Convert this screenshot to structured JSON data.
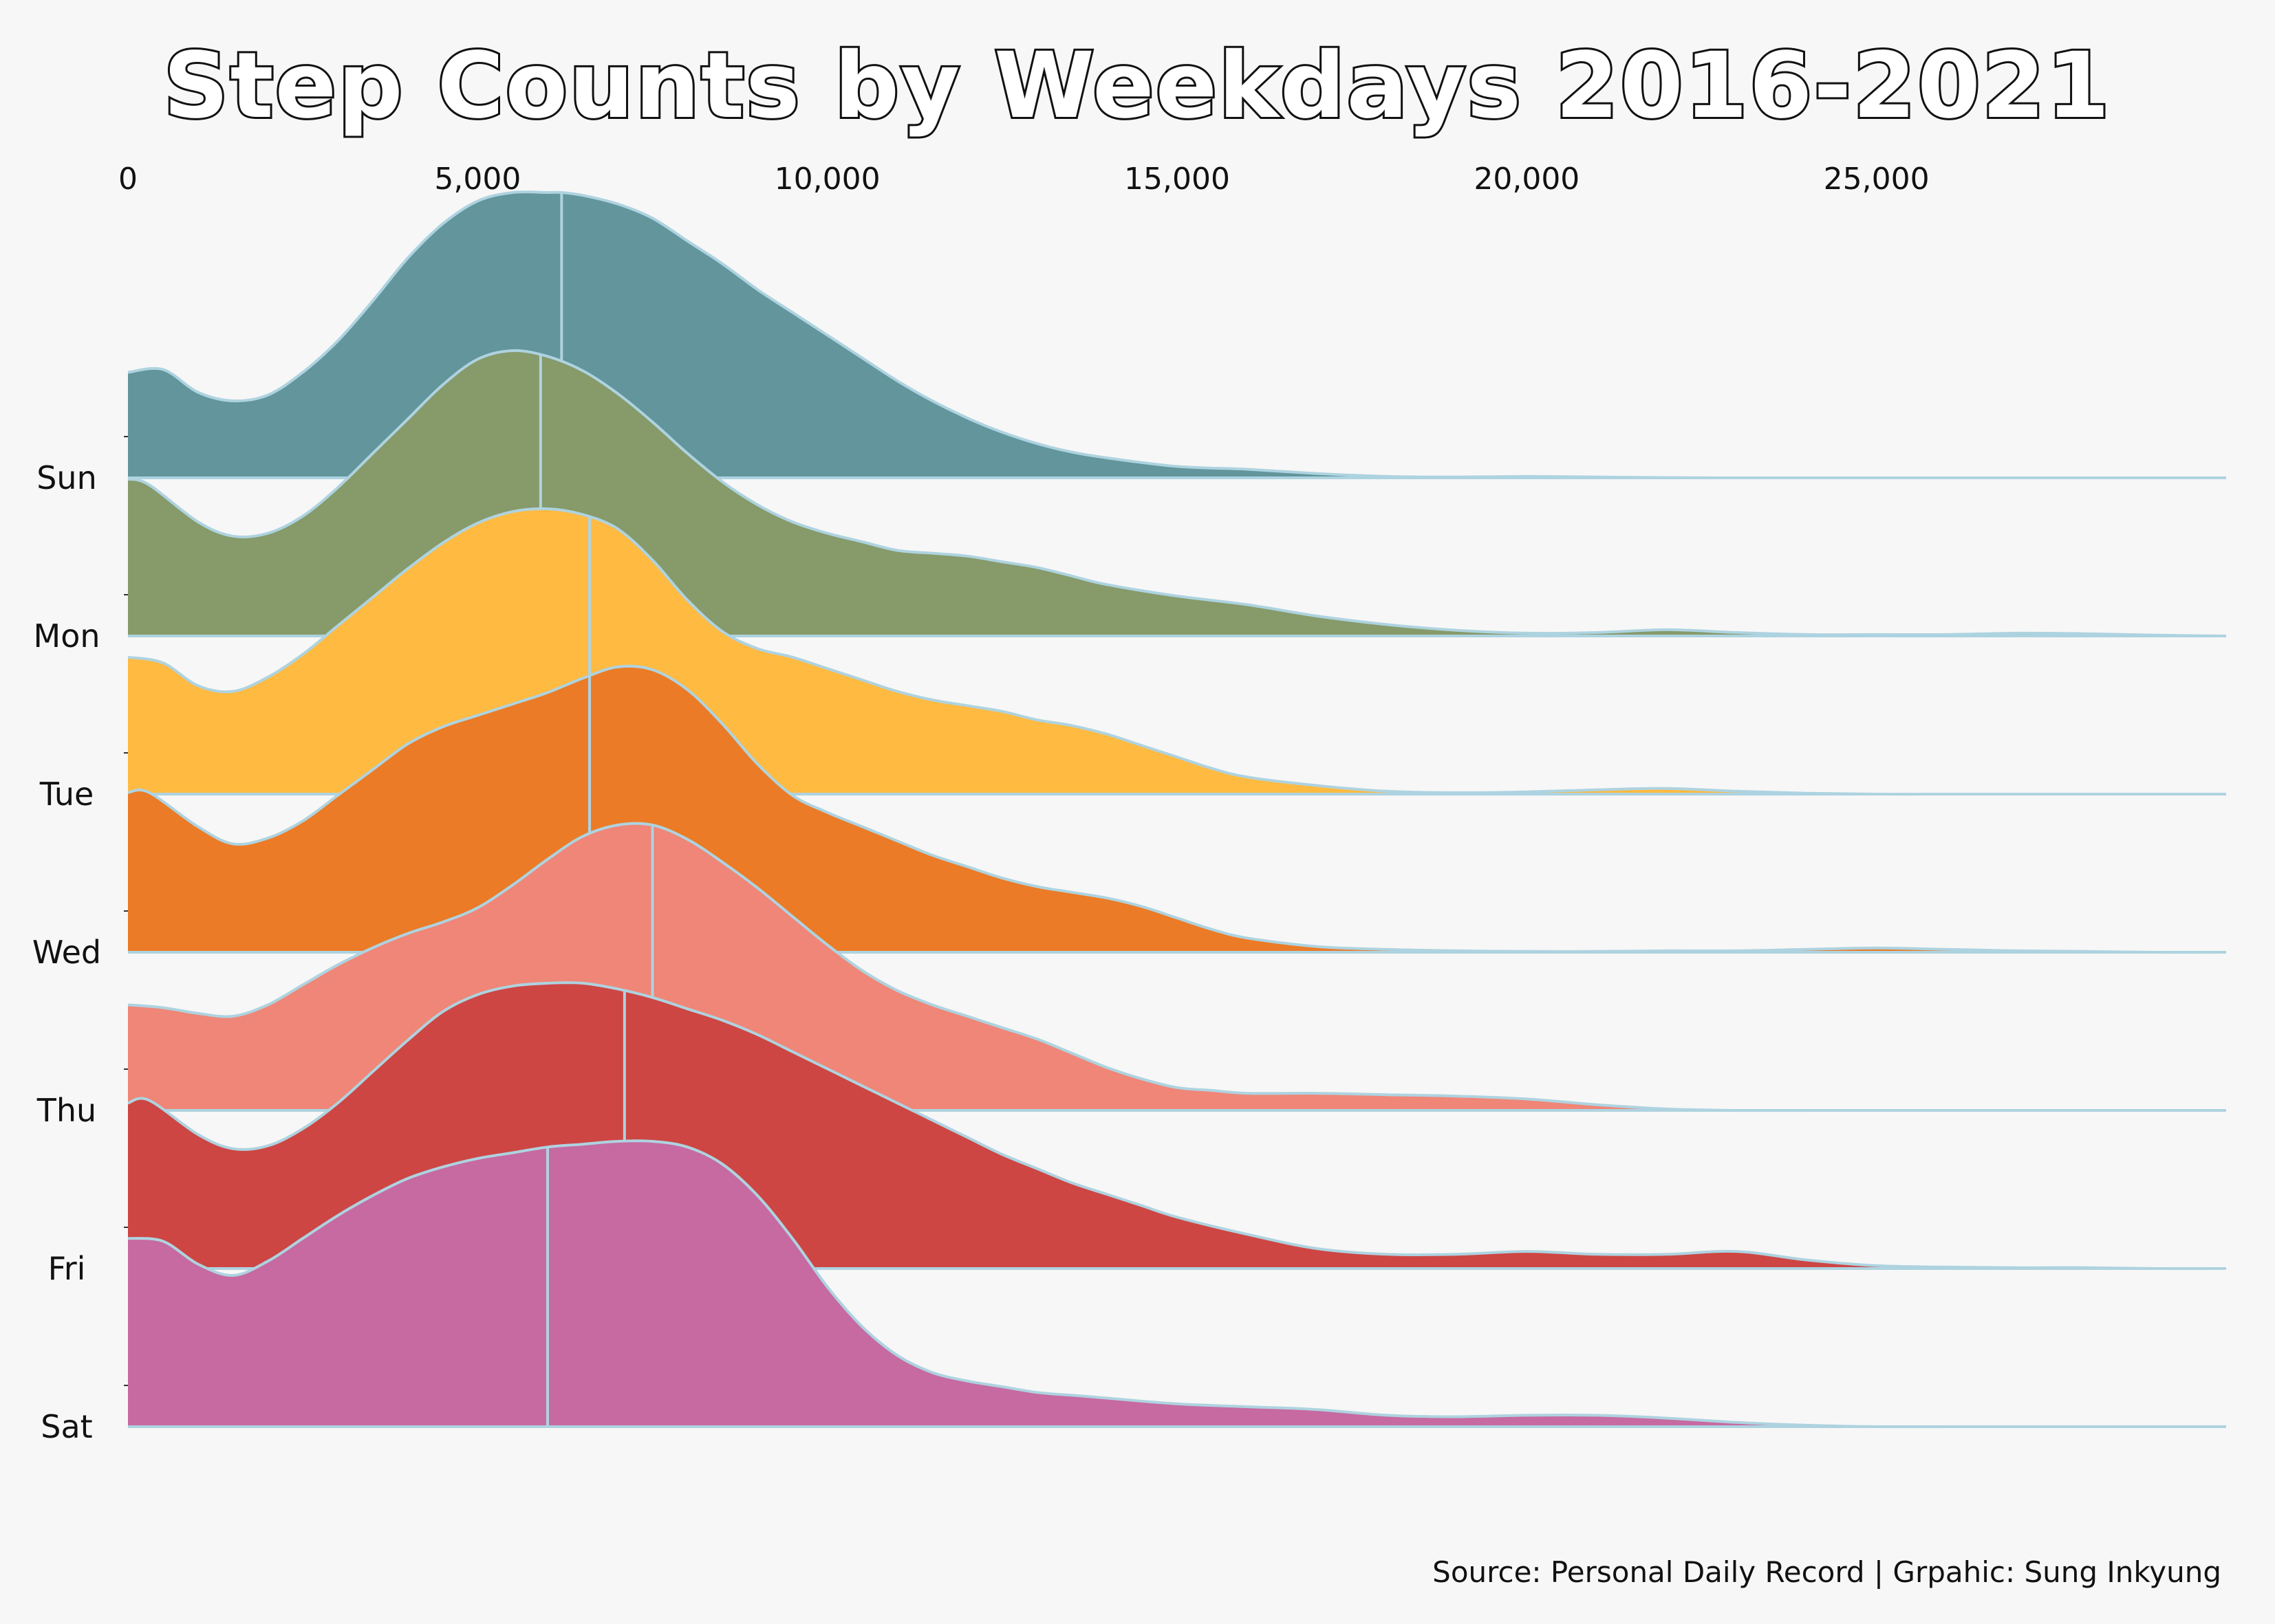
{
  "title": "Step Counts by Weekdays 2016-2021",
  "source": "Source: Personal Daily Record | Grpahic: Sung Inkyung",
  "chart_data": {
    "type": "area",
    "subtype": "ridgeline",
    "title": "Step Counts by Weekdays 2016-2021",
    "xlabel": "",
    "ylabel": "",
    "xlim": [
      0,
      30000
    ],
    "x_ticks": [
      0,
      5000,
      10000,
      15000,
      20000,
      25000
    ],
    "x_tick_labels": [
      "0",
      "5,000",
      "10,000",
      "15,000",
      "20,000",
      "25,000"
    ],
    "x_axis_position": "top",
    "grid": false,
    "legend": "none",
    "outline_color": "#aed3e0",
    "series": [
      {
        "name": "Sun",
        "color": "#62959c",
        "median": 6200,
        "x": [
          0,
          500,
          1000,
          1500,
          2000,
          2500,
          3000,
          3500,
          4000,
          4500,
          5000,
          5500,
          6000,
          6200,
          6500,
          7000,
          7500,
          8000,
          8500,
          9000,
          9500,
          10000,
          10500,
          11000,
          11500,
          12000,
          12500,
          13000,
          13500,
          14000,
          15000,
          16000,
          17000,
          18000,
          19000,
          20000,
          21000,
          22000,
          23000,
          24000,
          25000,
          26000,
          27000,
          28000,
          29000,
          30000
        ],
        "density": [
          0.37,
          0.38,
          0.3,
          0.27,
          0.29,
          0.37,
          0.48,
          0.62,
          0.77,
          0.89,
          0.97,
          1.0,
          1.0,
          1.0,
          0.99,
          0.96,
          0.91,
          0.83,
          0.75,
          0.66,
          0.58,
          0.5,
          0.42,
          0.34,
          0.27,
          0.21,
          0.16,
          0.12,
          0.09,
          0.07,
          0.04,
          0.03,
          0.015,
          0.005,
          0.003,
          0.005,
          0.003,
          0.001,
          0.0,
          0.0,
          0.0,
          0.0,
          0.0,
          0.0,
          0.0,
          0.0
        ]
      },
      {
        "name": "Mon",
        "color": "#869a6a",
        "median": 5900,
        "x": [
          0,
          300,
          1000,
          1500,
          2000,
          2500,
          3000,
          3500,
          4000,
          4500,
          5000,
          5500,
          6000,
          6500,
          7000,
          7500,
          8000,
          8500,
          9000,
          9500,
          10000,
          10500,
          11000,
          11500,
          12000,
          12500,
          13000,
          13500,
          14000,
          15000,
          16000,
          17000,
          18000,
          19000,
          20000,
          21000,
          22000,
          23000,
          24000,
          25000,
          26000,
          27000,
          28000,
          29000,
          30000
        ],
        "density": [
          0.55,
          0.53,
          0.4,
          0.35,
          0.36,
          0.42,
          0.52,
          0.64,
          0.76,
          0.88,
          0.97,
          1.0,
          0.98,
          0.93,
          0.85,
          0.75,
          0.64,
          0.54,
          0.46,
          0.4,
          0.36,
          0.33,
          0.3,
          0.29,
          0.28,
          0.26,
          0.24,
          0.21,
          0.18,
          0.14,
          0.11,
          0.07,
          0.04,
          0.02,
          0.01,
          0.012,
          0.022,
          0.012,
          0.005,
          0.005,
          0.005,
          0.01,
          0.008,
          0.003,
          0.0
        ]
      },
      {
        "name": "Tue",
        "color": "#ffba42",
        "median": 6600,
        "x": [
          0,
          500,
          1000,
          1500,
          2000,
          2500,
          3000,
          3500,
          4000,
          4500,
          5000,
          5500,
          6000,
          6500,
          7000,
          7500,
          8000,
          8500,
          9000,
          9500,
          10000,
          10500,
          11000,
          11500,
          12000,
          12500,
          13000,
          13500,
          14000,
          14500,
          15000,
          15500,
          16000,
          17000,
          18000,
          19000,
          20000,
          21000,
          22000,
          23000,
          24000,
          25000,
          26000,
          27000,
          28000,
          29000,
          30000
        ],
        "density": [
          0.48,
          0.46,
          0.38,
          0.36,
          0.41,
          0.49,
          0.59,
          0.69,
          0.79,
          0.88,
          0.95,
          0.99,
          1.0,
          0.98,
          0.93,
          0.82,
          0.68,
          0.57,
          0.51,
          0.48,
          0.44,
          0.4,
          0.36,
          0.33,
          0.31,
          0.29,
          0.26,
          0.24,
          0.21,
          0.17,
          0.13,
          0.09,
          0.06,
          0.03,
          0.01,
          0.005,
          0.008,
          0.015,
          0.02,
          0.01,
          0.003,
          0.0,
          0.0,
          0.0,
          0.0,
          0.0,
          0.0
        ]
      },
      {
        "name": "Wed",
        "color": "#eb7b26",
        "median": 6600,
        "x": [
          0,
          300,
          1000,
          1500,
          2000,
          2500,
          3000,
          3500,
          4000,
          4500,
          5000,
          5500,
          6000,
          6500,
          7000,
          7500,
          8000,
          8500,
          9000,
          9500,
          10000,
          10500,
          11000,
          11500,
          12000,
          12500,
          13000,
          13500,
          14000,
          14500,
          15000,
          15500,
          16000,
          17000,
          18000,
          19000,
          20000,
          21000,
          22000,
          23000,
          24000,
          25000,
          26000,
          27000,
          28000,
          29000,
          30000
        ],
        "density": [
          0.56,
          0.56,
          0.44,
          0.38,
          0.4,
          0.46,
          0.55,
          0.64,
          0.73,
          0.79,
          0.83,
          0.87,
          0.91,
          0.96,
          1.0,
          0.99,
          0.92,
          0.8,
          0.66,
          0.55,
          0.49,
          0.44,
          0.39,
          0.34,
          0.3,
          0.26,
          0.23,
          0.21,
          0.19,
          0.16,
          0.12,
          0.08,
          0.05,
          0.02,
          0.01,
          0.005,
          0.003,
          0.003,
          0.005,
          0.005,
          0.01,
          0.015,
          0.01,
          0.005,
          0.003,
          0.0,
          0.0
        ]
      },
      {
        "name": "Thu",
        "color": "#ef8677",
        "median": 7500,
        "x": [
          0,
          500,
          1000,
          1500,
          2000,
          2500,
          3000,
          3500,
          4000,
          4500,
          5000,
          5500,
          6000,
          6500,
          7000,
          7500,
          8000,
          8500,
          9000,
          9500,
          10000,
          10500,
          11000,
          11500,
          12000,
          12500,
          13000,
          13500,
          14000,
          14500,
          15000,
          15500,
          16000,
          17000,
          18000,
          19000,
          20000,
          21000,
          22000,
          23000,
          24000,
          25000,
          26000,
          27000,
          28000,
          29000,
          30000
        ],
        "density": [
          0.37,
          0.36,
          0.34,
          0.33,
          0.37,
          0.44,
          0.51,
          0.57,
          0.62,
          0.66,
          0.71,
          0.79,
          0.88,
          0.96,
          1.0,
          1.0,
          0.95,
          0.87,
          0.78,
          0.68,
          0.58,
          0.49,
          0.42,
          0.37,
          0.33,
          0.29,
          0.25,
          0.2,
          0.15,
          0.11,
          0.08,
          0.07,
          0.06,
          0.06,
          0.055,
          0.05,
          0.04,
          0.02,
          0.005,
          0.0,
          0.0,
          0.0,
          0.0,
          0.0,
          0.0,
          0.0,
          0.0
        ]
      },
      {
        "name": "Fri",
        "color": "#cd4643",
        "median": 7100,
        "x": [
          0,
          300,
          1000,
          1500,
          2000,
          2500,
          3000,
          3500,
          4000,
          4500,
          5000,
          5500,
          6000,
          6500,
          7000,
          7500,
          8000,
          8500,
          9000,
          9500,
          10000,
          10500,
          11000,
          11500,
          12000,
          12500,
          13000,
          13500,
          14000,
          14500,
          15000,
          16000,
          17000,
          18000,
          19000,
          20000,
          21000,
          22000,
          23000,
          24000,
          25000,
          26000,
          27000,
          28000,
          29000,
          30000
        ],
        "density": [
          0.58,
          0.59,
          0.47,
          0.42,
          0.43,
          0.49,
          0.58,
          0.69,
          0.8,
          0.9,
          0.96,
          0.99,
          1.0,
          1.0,
          0.98,
          0.95,
          0.91,
          0.87,
          0.82,
          0.76,
          0.7,
          0.64,
          0.58,
          0.52,
          0.46,
          0.4,
          0.35,
          0.3,
          0.26,
          0.22,
          0.18,
          0.12,
          0.07,
          0.05,
          0.05,
          0.06,
          0.05,
          0.05,
          0.06,
          0.03,
          0.01,
          0.005,
          0.003,
          0.003,
          0.0,
          0.0
        ]
      },
      {
        "name": "Sat",
        "color": "#c66aa1",
        "median": 6000,
        "x": [
          0,
          500,
          1000,
          1500,
          2000,
          2500,
          3000,
          3500,
          4000,
          4500,
          5000,
          5500,
          6000,
          6500,
          7000,
          7500,
          8000,
          8500,
          9000,
          9500,
          10000,
          10500,
          11000,
          11500,
          12000,
          12500,
          13000,
          13500,
          14000,
          15000,
          16000,
          17000,
          18000,
          19000,
          20000,
          21000,
          22000,
          23000,
          24000,
          25000,
          26000,
          27000,
          28000,
          29000,
          30000
        ],
        "density": [
          0.66,
          0.65,
          0.57,
          0.53,
          0.58,
          0.66,
          0.74,
          0.81,
          0.87,
          0.91,
          0.94,
          0.96,
          0.98,
          0.99,
          1.0,
          1.0,
          0.98,
          0.92,
          0.81,
          0.66,
          0.49,
          0.35,
          0.25,
          0.19,
          0.16,
          0.14,
          0.12,
          0.11,
          0.1,
          0.08,
          0.07,
          0.06,
          0.04,
          0.035,
          0.04,
          0.04,
          0.03,
          0.015,
          0.005,
          0.0,
          0.0,
          0.0,
          0.0,
          0.0,
          0.0
        ]
      }
    ]
  }
}
